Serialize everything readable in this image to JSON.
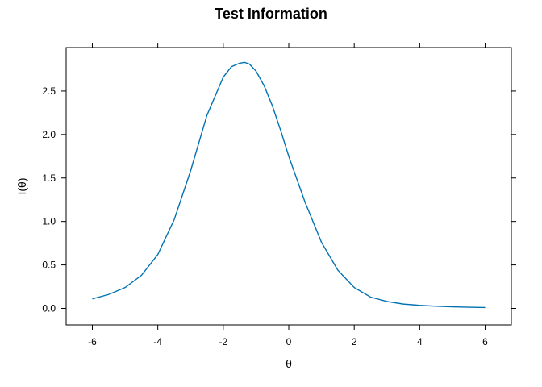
{
  "chart_data": {
    "type": "line",
    "title": "Test Information",
    "xlabel": "θ",
    "ylabel": "I(θ)",
    "xlim": [
      -6.8,
      6.8
    ],
    "ylim": [
      -0.19,
      3.0
    ],
    "x_ticks": [
      -6,
      -4,
      -2,
      0,
      2,
      4,
      6
    ],
    "x_tick_labels": [
      "-6",
      "-4",
      "-2",
      "0",
      "2",
      "4",
      "6"
    ],
    "y_ticks": [
      0.0,
      0.5,
      1.0,
      1.5,
      2.0,
      2.5
    ],
    "y_tick_labels": [
      "0.0",
      "0.5",
      "1.0",
      "1.5",
      "2.0",
      "2.5"
    ],
    "grid": false,
    "series_color": "#0072B2",
    "series": [
      {
        "x": [
          -6.0,
          -5.5,
          -5.0,
          -4.5,
          -4.0,
          -3.5,
          -3.0,
          -2.5,
          -2.0,
          -1.75,
          -1.5,
          -1.35,
          -1.2,
          -1.0,
          -0.75,
          -0.5,
          -0.25,
          0.0,
          0.5,
          1.0,
          1.5,
          2.0,
          2.5,
          3.0,
          3.5,
          4.0,
          4.5,
          5.0,
          5.5,
          6.0
        ],
        "y": [
          0.11,
          0.16,
          0.24,
          0.38,
          0.62,
          1.02,
          1.58,
          2.22,
          2.66,
          2.78,
          2.82,
          2.83,
          2.81,
          2.73,
          2.56,
          2.33,
          2.05,
          1.75,
          1.22,
          0.76,
          0.44,
          0.24,
          0.13,
          0.08,
          0.05,
          0.035,
          0.025,
          0.018,
          0.013,
          0.01
        ]
      }
    ]
  }
}
